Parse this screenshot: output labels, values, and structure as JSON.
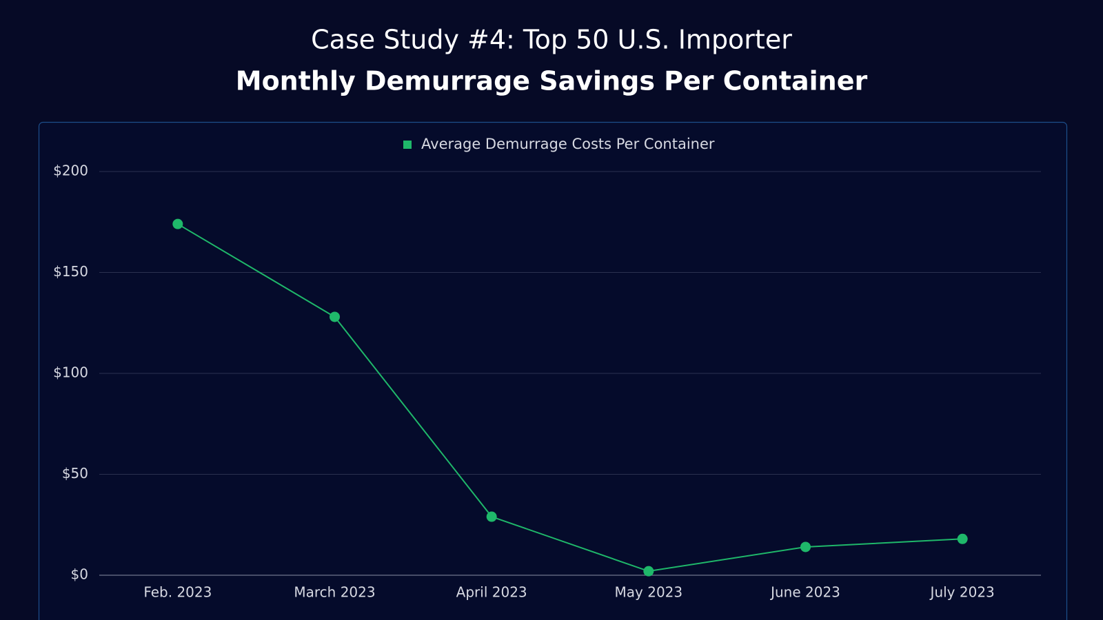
{
  "chart_data": {
    "type": "line",
    "title": "Case Study #4: Top 50 U.S. Importer",
    "subtitle": "Monthly Demurrage Savings Per Container",
    "categories": [
      "Feb. 2023",
      "March 2023",
      "April 2023",
      "May 2023",
      "June 2023",
      "July 2023"
    ],
    "series": [
      {
        "name": "Average Demurrage Costs Per Container",
        "color": "#1fb86a",
        "values": [
          174,
          128,
          29,
          2,
          14,
          18
        ]
      }
    ],
    "ylim": [
      0,
      200
    ],
    "yticks": [
      {
        "value": 0,
        "label": "$0"
      },
      {
        "value": 50,
        "label": "$50"
      },
      {
        "value": 100,
        "label": "$100"
      },
      {
        "value": 150,
        "label": "$150"
      },
      {
        "value": 200,
        "label": "$200"
      }
    ],
    "grid": true,
    "legend": "top"
  }
}
